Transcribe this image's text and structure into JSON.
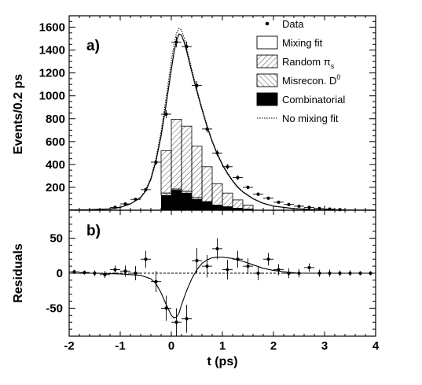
{
  "chart_data": [
    {
      "type": "histogram",
      "panel_label": "a)",
      "ylabel": "Events/0.2 ps",
      "xlim": [
        -2,
        4
      ],
      "ylim": [
        0,
        1700
      ],
      "yticks": [
        200,
        400,
        600,
        800,
        1000,
        1200,
        1400,
        1600
      ],
      "legend": [
        {
          "label": "Data",
          "symbol": "dot"
        },
        {
          "label": "Mixing fit",
          "symbol": "open-box"
        },
        {
          "label": "Random π",
          "sub": "s",
          "symbol": "hatch-back"
        },
        {
          "label": "Misrecon. D",
          "sup": "0",
          "symbol": "hatch-fwd"
        },
        {
          "label": "Combinatorial",
          "symbol": "filled-box"
        },
        {
          "label": "No mixing fit",
          "symbol": "dotted-line"
        }
      ],
      "bin_edges": [
        -0.2,
        0.0,
        0.2,
        0.4,
        0.6,
        0.8,
        1.0,
        1.2,
        1.4,
        1.6
      ],
      "series": [
        {
          "name": "Combinatorial",
          "style": "solid-black",
          "values": [
            130,
            175,
            150,
            95,
            70,
            40,
            25,
            15,
            8
          ]
        },
        {
          "name": "Misrecon. D0",
          "style": "hatch-fwd",
          "values": [
            150,
            185,
            165,
            110,
            75,
            45,
            30,
            18,
            10
          ]
        },
        {
          "name": "Random pi_s",
          "style": "hatch-back",
          "values": [
            520,
            795,
            735,
            560,
            380,
            230,
            150,
            90,
            45
          ]
        },
        {
          "name": "Mixing fit",
          "style": "solid-line",
          "x": [
            -2.0,
            -1.6,
            -1.2,
            -1.0,
            -0.8,
            -0.6,
            -0.5,
            -0.4,
            -0.3,
            -0.2,
            -0.1,
            0.0,
            0.05,
            0.1,
            0.15,
            0.2,
            0.25,
            0.3,
            0.4,
            0.5,
            0.6,
            0.7,
            0.8,
            0.9,
            1.0,
            1.1,
            1.2,
            1.3,
            1.4,
            1.6,
            1.8,
            2.0,
            2.4,
            2.8,
            3.2,
            4.0
          ],
          "y": [
            2,
            5,
            12,
            25,
            55,
            110,
            170,
            270,
            430,
            650,
            930,
            1230,
            1370,
            1480,
            1540,
            1530,
            1470,
            1390,
            1210,
            1040,
            880,
            730,
            600,
            490,
            395,
            320,
            255,
            200,
            160,
            100,
            60,
            36,
            14,
            5,
            2,
            0
          ]
        },
        {
          "name": "No mixing fit",
          "style": "dotted-line",
          "x": [
            -2.0,
            -1.6,
            -1.2,
            -1.0,
            -0.8,
            -0.6,
            -0.5,
            -0.4,
            -0.3,
            -0.2,
            -0.1,
            0.0,
            0.05,
            0.1,
            0.15,
            0.2,
            0.25,
            0.3,
            0.4,
            0.5,
            0.6,
            0.7,
            0.8,
            0.9,
            1.0,
            1.1,
            1.2,
            1.3,
            1.4,
            1.6,
            1.8,
            2.0,
            2.4,
            2.8,
            3.2,
            4.0
          ],
          "y": [
            2,
            5,
            12,
            25,
            55,
            115,
            180,
            285,
            455,
            690,
            990,
            1300,
            1440,
            1545,
            1590,
            1575,
            1510,
            1420,
            1235,
            1060,
            895,
            745,
            610,
            500,
            405,
            328,
            262,
            206,
            164,
            102,
            62,
            37,
            14,
            5,
            2,
            0
          ]
        },
        {
          "name": "Data",
          "style": "points-with-errors",
          "x": [
            -1.1,
            -0.9,
            -0.7,
            -0.5,
            -0.3,
            -0.1,
            0.1,
            0.3,
            0.5,
            0.7,
            0.9,
            1.1,
            1.3,
            1.5,
            1.7,
            1.9,
            2.1,
            2.3,
            2.5,
            2.7,
            2.9,
            3.1,
            3.3
          ],
          "y": [
            25,
            55,
            95,
            180,
            420,
            840,
            1470,
            1430,
            1090,
            710,
            500,
            380,
            285,
            200,
            140,
            105,
            70,
            50,
            35,
            25,
            15,
            10,
            5
          ]
        }
      ]
    },
    {
      "type": "scatter",
      "panel_label": "b)",
      "xlabel": "t (ps)",
      "ylabel": "Residuals",
      "xlim": [
        -2,
        4
      ],
      "ylim": [
        -90,
        90
      ],
      "xticks": [
        -2,
        -1,
        0,
        1,
        2,
        3,
        4
      ],
      "yticks": [
        -50,
        0,
        50
      ],
      "reference_line": {
        "y": 0,
        "style": "dashed"
      },
      "series": [
        {
          "name": "Data",
          "style": "points-with-errors",
          "x": [
            -1.9,
            -1.7,
            -1.5,
            -1.3,
            -1.1,
            -0.9,
            -0.7,
            -0.5,
            -0.3,
            -0.1,
            0.1,
            0.3,
            0.5,
            0.7,
            0.9,
            1.1,
            1.3,
            1.5,
            1.7,
            1.9,
            2.1,
            2.3,
            2.5,
            2.7,
            2.9,
            3.1,
            3.3,
            3.5,
            3.7,
            3.9
          ],
          "y": [
            2,
            1,
            0,
            -2,
            5,
            3,
            0,
            20,
            -12,
            -50,
            -70,
            -65,
            18,
            10,
            35,
            5,
            20,
            10,
            0,
            20,
            5,
            0,
            0,
            8,
            0,
            0,
            0,
            0,
            0,
            0
          ],
          "yerr": [
            3,
            3,
            4,
            5,
            6,
            8,
            10,
            12,
            15,
            18,
            20,
            20,
            18,
            16,
            15,
            14,
            12,
            11,
            10,
            9,
            8,
            7,
            6,
            6,
            5,
            5,
            4,
            4,
            3,
            3
          ]
        },
        {
          "name": "Mixing fit",
          "style": "solid-line",
          "x": [
            -2.0,
            -1.5,
            -1.0,
            -0.6,
            -0.4,
            -0.3,
            -0.2,
            -0.1,
            0.0,
            0.05,
            0.1,
            0.15,
            0.2,
            0.3,
            0.4,
            0.5,
            0.6,
            0.7,
            0.8,
            0.9,
            1.0,
            1.2,
            1.4,
            1.6,
            1.8,
            2.0,
            2.2,
            2.5,
            3.0,
            4.0
          ],
          "y": [
            0,
            0,
            -1,
            -3,
            -8,
            -15,
            -28,
            -45,
            -60,
            -64,
            -63,
            -57,
            -45,
            -25,
            -8,
            5,
            14,
            19,
            22,
            23,
            23,
            21,
            17,
            12,
            7,
            4,
            2,
            0,
            0,
            0
          ]
        }
      ]
    }
  ]
}
